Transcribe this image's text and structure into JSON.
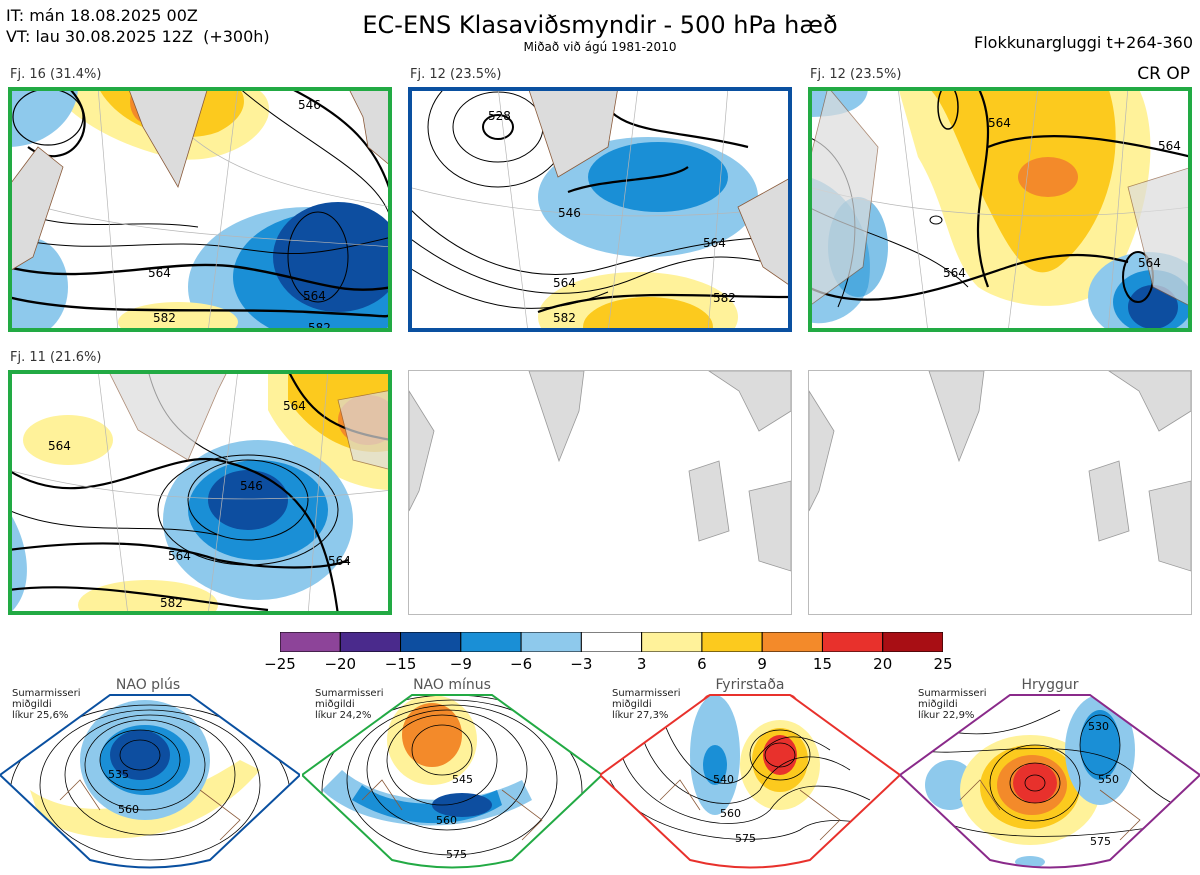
{
  "header": {
    "init_time": "IT: mán 18.08.2025 00Z",
    "valid_time": "VT: lau 30.08.2025 12Z  (+300h)",
    "title": "EC-ENS Klasaviðsmyndir - 500 hPa hæð",
    "subtitle": "Miðað við ágú 1981-2010",
    "window": "Flokkunargluggi t+264-360"
  },
  "panels": [
    {
      "label": "Fj. 16 (31.4%)",
      "border_color": "#22aa44",
      "contours": [
        "564",
        "564",
        "582",
        "546",
        "582"
      ]
    },
    {
      "label": "Fj. 12 (23.5%)",
      "border_color": "#0a50a0",
      "contours": [
        "528",
        "546",
        "564",
        "564",
        "582",
        "582"
      ]
    },
    {
      "label": "Fj. 12 (23.5%)",
      "border_color": "#22aa44",
      "tag": "CR OP",
      "contours": [
        "564",
        "564",
        "564",
        "564"
      ]
    },
    {
      "label": "Fj. 11 (21.6%)",
      "border_color": "#22aa44",
      "contours": [
        "564",
        "546",
        "564",
        "564",
        "582",
        "564"
      ]
    }
  ],
  "colorbar": {
    "ticks": [
      "−25",
      "−20",
      "−15",
      "−9",
      "−6",
      "−3",
      "3",
      "6",
      "9",
      "15",
      "20",
      "25"
    ],
    "colors": [
      "#8d4499",
      "#4a2a8c",
      "#0d4ea0",
      "#1a8fd6",
      "#8ec9ec",
      "#ffffff",
      "#fff29a",
      "#fcca1e",
      "#f38a2a",
      "#e8312c",
      "#a80e14"
    ]
  },
  "regimes": [
    {
      "name": "NAO plús",
      "season": "Sumarmisseri",
      "median": "miðgildi",
      "probability": "líkur 25,6%",
      "dot_color": "#0a50a0",
      "frame_color": "#0a50a0",
      "contours": [
        "535",
        "560"
      ]
    },
    {
      "name": "NAO mínus",
      "season": "Sumarmisseri",
      "median": "miðgildi",
      "probability": "líkur 24,2%",
      "dot_color": "#22aa44",
      "frame_color": "#22aa44",
      "contours": [
        "545",
        "560",
        "575"
      ]
    },
    {
      "name": "Fyrirstaða",
      "season": "Sumarmisseri",
      "median": "miðgildi",
      "probability": "líkur 27,3%",
      "dot_color": "#e8312c",
      "frame_color": "#e8312c",
      "contours": [
        "540",
        "560",
        "575"
      ]
    },
    {
      "name": "Hryggur",
      "season": "Sumarmisseri",
      "median": "miðgildi",
      "probability": "líkur 22,9%",
      "dot_color": "#e878e8",
      "frame_color": "#8a2a8a",
      "contours": [
        "530",
        "550",
        "575"
      ]
    }
  ]
}
